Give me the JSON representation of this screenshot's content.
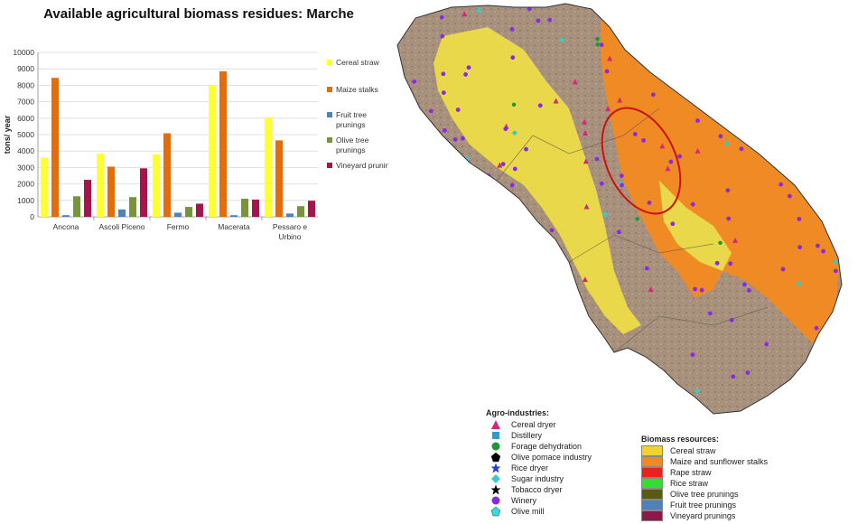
{
  "chart_data": {
    "type": "bar",
    "title": "Available agricultural biomass residues: Marche",
    "ylabel": "tons/ year",
    "xlabel": "",
    "ylim": [
      0,
      10000
    ],
    "yticks": [
      0,
      1000,
      2000,
      3000,
      4000,
      5000,
      6000,
      7000,
      8000,
      9000,
      10000
    ],
    "categories": [
      "Ancona",
      "Ascoli Piceno",
      "Fermo",
      "Macerata",
      "Pessaro e Urbino"
    ],
    "series": [
      {
        "name": "Cereal straw",
        "color": "#ffff33",
        "values": [
          3600,
          3850,
          3800,
          8000,
          6050
        ]
      },
      {
        "name": "Maize stalks",
        "color": "#e46c0a",
        "values": [
          8450,
          3050,
          5080,
          8850,
          4650
        ]
      },
      {
        "name": "Fruit tree prunings",
        "color": "#4f81bd",
        "values": [
          100,
          450,
          250,
          100,
          200
        ]
      },
      {
        "name": "Olive tree prunings",
        "color": "#77933c",
        "values": [
          1250,
          1200,
          600,
          1100,
          650
        ]
      },
      {
        "name": "Vineyard prunings",
        "color": "#a5144a",
        "values": [
          2250,
          2950,
          800,
          1050,
          980
        ]
      }
    ],
    "legend_position": "right",
    "grid": true
  },
  "map": {
    "agro_industries": {
      "heading": "Agro-industries:",
      "items": [
        {
          "label": "Cereal dryer",
          "icon": "triangle-icon",
          "color": "#d6257a"
        },
        {
          "label": "Distillery",
          "icon": "square-icon",
          "color": "#3399cc"
        },
        {
          "label": "Forage dehydration",
          "icon": "circle-icon",
          "color": "#1a9933"
        },
        {
          "label": "Olive pomace industry",
          "icon": "pentagon-icon",
          "color": "#000000"
        },
        {
          "label": "Rice dryer",
          "icon": "star-icon",
          "color": "#1f3fcc"
        },
        {
          "label": "Sugar industry",
          "icon": "diamond-icon",
          "color": "#33cccc"
        },
        {
          "label": "Tobacco dryer",
          "icon": "star-icon",
          "color": "#000000"
        },
        {
          "label": "Winery",
          "icon": "circle-icon",
          "color": "#8a2be2"
        },
        {
          "label": "Olive mill",
          "icon": "pentagon-icon",
          "color": "#33dddd"
        }
      ]
    },
    "biomass_resources": {
      "heading": "Biomass resources:",
      "items": [
        {
          "label": "Cereal straw",
          "color": "#f2d22e"
        },
        {
          "label": "Maize and sunflower stalks",
          "color": "#f08a24"
        },
        {
          "label": "Rape straw",
          "color": "#e8231e"
        },
        {
          "label": "Rice straw",
          "color": "#33dd33"
        },
        {
          "label": "Olive tree prunings",
          "color": "#5a5a14"
        },
        {
          "label": "Fruit tree prunings",
          "color": "#4f81bd"
        },
        {
          "label": "Vineyard prunings",
          "color": "#8b1a4a"
        }
      ]
    },
    "colors": {
      "land": "#a8917c",
      "orange": "#f08a24",
      "yellow": "#e8d84a",
      "highlight_ellipse": "#cc1111"
    }
  }
}
